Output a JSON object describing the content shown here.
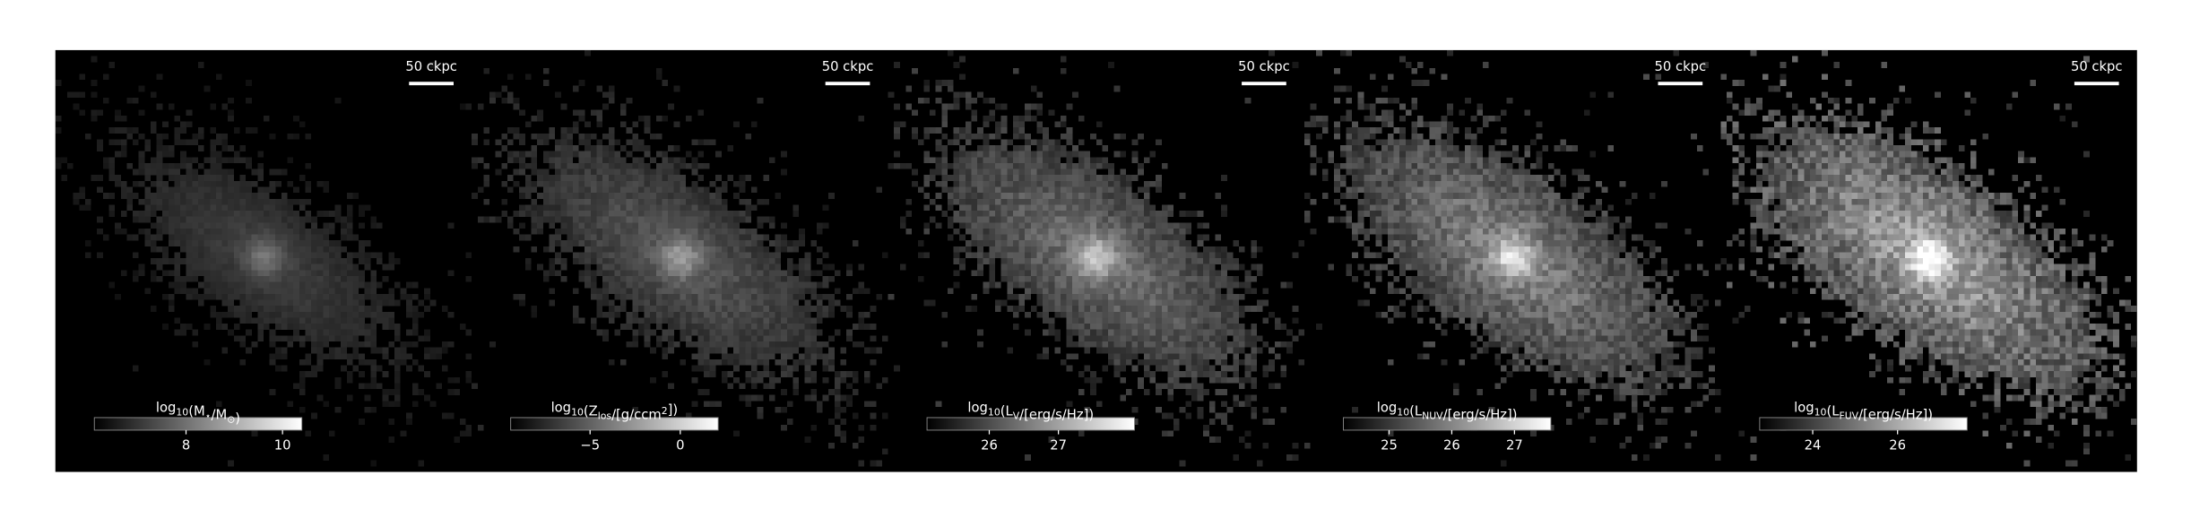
{
  "chart_data": [
    {
      "type": "image",
      "scale_bar_label": "50 ckpc",
      "colorbar_label": [
        "log",
        {
          "text": "10",
          "script": "sub"
        },
        "(M",
        {
          "text": "⋆",
          "script": "sub"
        },
        "/M",
        {
          "text": "⊙",
          "script": "sub"
        },
        ")"
      ],
      "xlim": [
        6.1,
        10.4
      ],
      "xticks": [
        8,
        10
      ]
    },
    {
      "type": "image",
      "scale_bar_label": "50 ckpc",
      "colorbar_label": [
        "log",
        {
          "text": "10",
          "script": "sub"
        },
        "(Z",
        {
          "text": "los",
          "script": "sub"
        },
        "/[g/ccm",
        {
          "text": "2",
          "script": "super"
        },
        "])"
      ],
      "xlim": [
        -9.4,
        2.1
      ],
      "xticks": [
        {
          "value": -5,
          "label": "−5"
        },
        0
      ]
    },
    {
      "type": "image",
      "scale_bar_label": "50 ckpc",
      "colorbar_label": [
        "log",
        {
          "text": "10",
          "script": "sub"
        },
        "(L",
        {
          "text": "V",
          "script": "sub"
        },
        "/[erg/s/Hz])"
      ],
      "xlim": [
        25.1,
        28.1
      ],
      "xticks": [
        26,
        27
      ]
    },
    {
      "type": "image",
      "scale_bar_label": "50 ckpc",
      "colorbar_label": [
        "log",
        {
          "text": "10",
          "script": "sub"
        },
        "(L",
        {
          "text": "NUV",
          "script": "sub"
        },
        "/[erg/s/Hz])"
      ],
      "xlim": [
        24.27,
        27.58
      ],
      "xticks": [
        25,
        26,
        27
      ]
    },
    {
      "type": "image",
      "scale_bar_label": "50 ckpc",
      "colorbar_label": [
        "log",
        {
          "text": "10",
          "script": "sub"
        },
        "(L",
        {
          "text": "FUV",
          "script": "sub"
        },
        "/[erg/s/Hz])"
      ],
      "xlim": [
        22.75,
        27.64
      ],
      "xticks": [
        24,
        26
      ]
    }
  ]
}
